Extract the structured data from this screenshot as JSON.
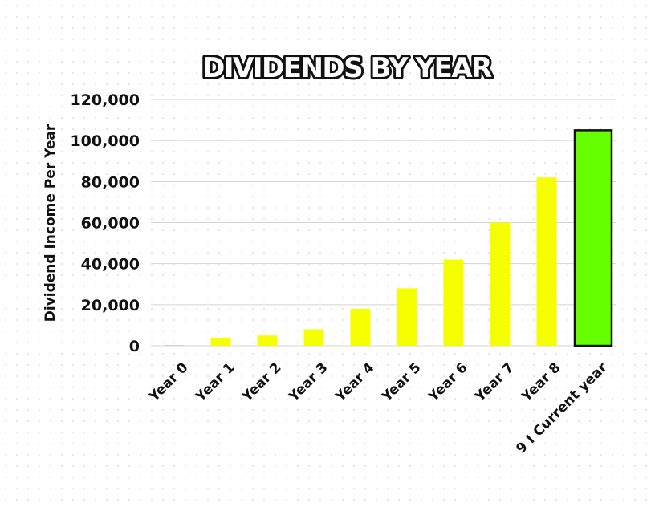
{
  "chart_data": {
    "type": "bar",
    "title": "DIVIDENDS BY YEAR",
    "xlabel": "",
    "ylabel": "Dividend Income Per Year",
    "categories": [
      "Year 0",
      "Year 1",
      "Year 2",
      "Year 3",
      "Year 4",
      "Year 5",
      "Year 6",
      "Year 7",
      "Year 8",
      "9 I Current year"
    ],
    "values": [
      400,
      4000,
      5000,
      8000,
      18000,
      28000,
      42000,
      60000,
      82000,
      105000
    ],
    "ylim": [
      0,
      120000
    ],
    "yticks": [
      0,
      20000,
      40000,
      60000,
      80000,
      100000,
      120000
    ],
    "ytick_labels": [
      "0",
      "20,000",
      "40,000",
      "60,000",
      "80,000",
      "100,000",
      "120,000"
    ],
    "grid": true,
    "legend": "none",
    "colors": {
      "bar": "#f5ff00",
      "highlight_bar": "#66ff00",
      "highlight_outline": "#111111",
      "grid": "#d4d4d4",
      "text": "#111111"
    },
    "highlight_index": 9
  }
}
